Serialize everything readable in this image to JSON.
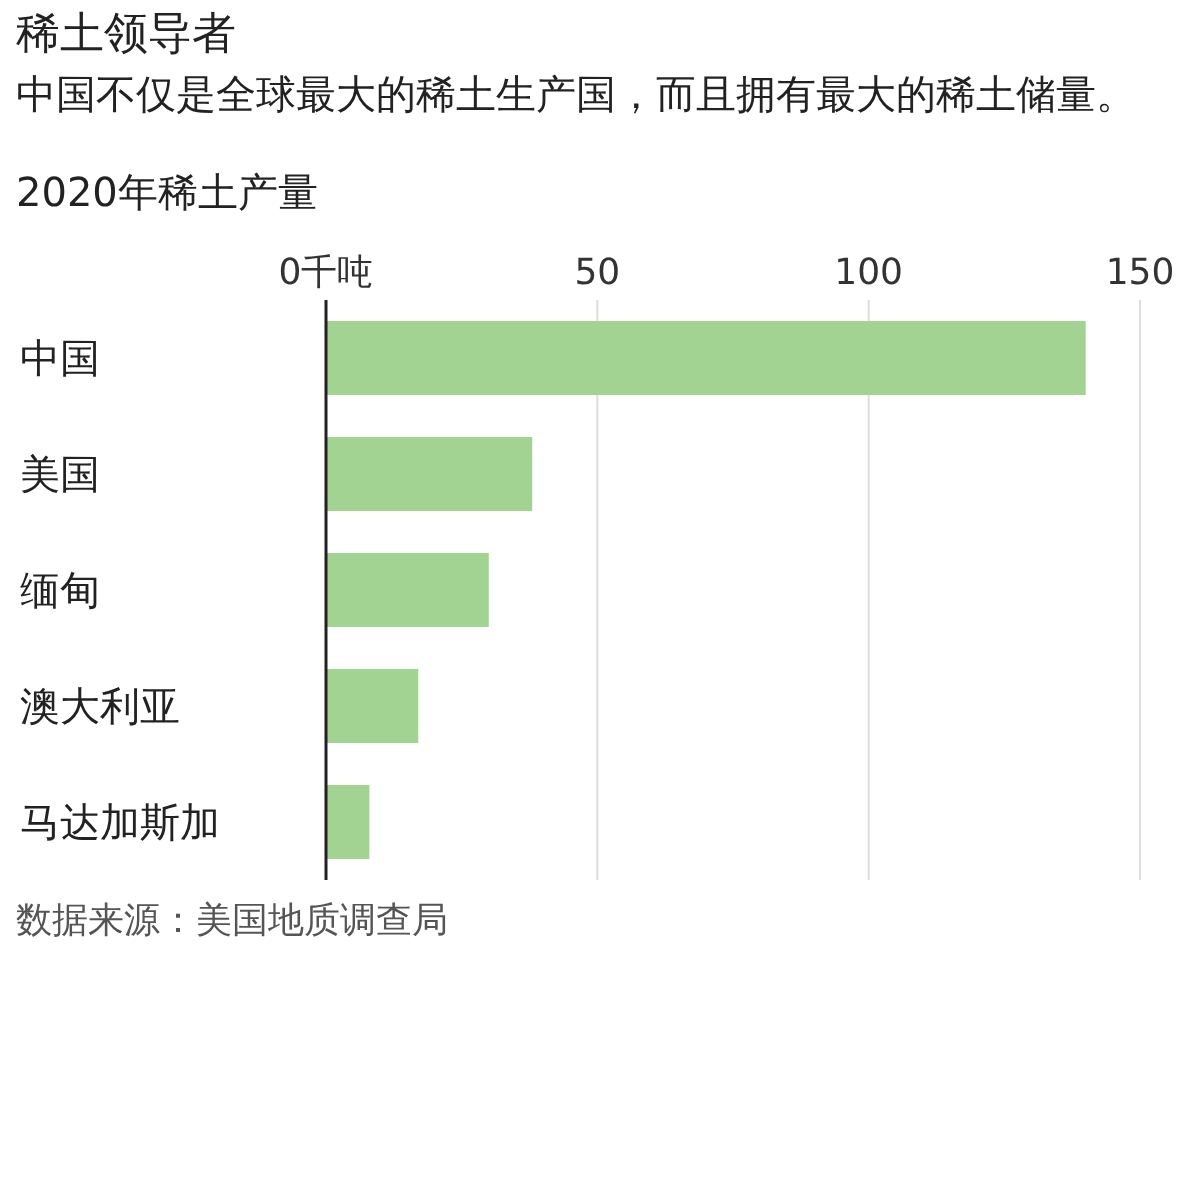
{
  "chart_data": {
    "type": "bar",
    "orientation": "horizontal",
    "title": "稀土领导者",
    "subtitle": "中国不仅是全球最大的稀土生产国，而且拥有最大的稀土储量。",
    "annotations": [
      "2020年稀土产量",
      "数据来源：美国地质调查局"
    ],
    "categories": [
      "中国",
      "美国",
      "缅甸",
      "澳大利亚",
      "马达加斯加"
    ],
    "values": [
      140,
      38,
      30,
      17,
      8
    ],
    "color": "#a3d393",
    "xlim": [
      0,
      150
    ],
    "xticks": [
      {
        "value": 0,
        "label": "0千吨"
      },
      50,
      100,
      150
    ],
    "grid": "x"
  }
}
